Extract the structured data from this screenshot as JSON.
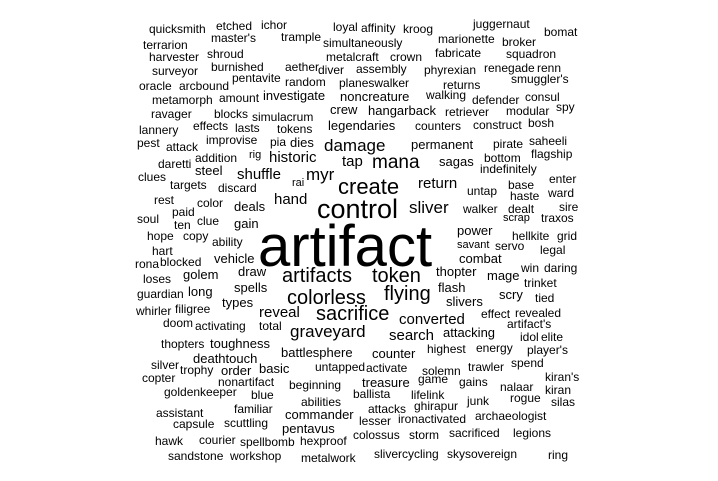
{
  "word_cloud": {
    "color": "#000000",
    "words": [
      "artifact",
      "control",
      "create",
      "colorless",
      "sacrifice",
      "artifacts",
      "token",
      "flying",
      "mana",
      "damage",
      "myr",
      "graveyard",
      "sliver",
      "converted",
      "reveal",
      "return",
      "search",
      "shuffle",
      "hand",
      "historic",
      "tap",
      "dies",
      "legendaries",
      "counter",
      "combat",
      "thopter",
      "slivers",
      "flash",
      "power",
      "draw",
      "spells",
      "gain",
      "deals",
      "hangarback",
      "permanent",
      "sagas",
      "untap",
      "walker",
      "dealt",
      "haste",
      "scrap",
      "servo",
      "savant",
      "battlesphere",
      "highest",
      "energy",
      "untapped",
      "activate",
      "solemn",
      "treasure",
      "game",
      "gains",
      "trawler",
      "beginning",
      "ballista",
      "lifelink",
      "attacks",
      "ghirapur",
      "junk",
      "rogue",
      "abilities",
      "commander",
      "lesser",
      "ironactivated",
      "archaeologist",
      "pentavus",
      "colossus",
      "storm",
      "sacrificed",
      "legions",
      "hexproof",
      "spellbomb",
      "courier",
      "hawk",
      "sandstone",
      "workshop",
      "metalwork",
      "slivercycling",
      "skysovereign",
      "ring",
      "capsule",
      "scuttling",
      "familiar",
      "assistant",
      "silas",
      "kiran",
      "kiran's",
      "nalaar",
      "spend",
      "player's",
      "idol",
      "elite",
      "artifact's",
      "revealed",
      "attacking",
      "tied",
      "trinket",
      "effect",
      "types",
      "total",
      "toughness",
      "deathtouch",
      "activating",
      "doom",
      "filigree",
      "whirler",
      "thopters",
      "silver",
      "copter",
      "trophy",
      "order",
      "basic",
      "nonartifact",
      "blue",
      "goldenkeeper",
      "long",
      "golem",
      "guardian",
      "loses",
      "rona",
      "blocked",
      "vehicle",
      "ability",
      "copy",
      "hope",
      "clue",
      "ten",
      "paid",
      "soul",
      "rest",
      "hart",
      "steel",
      "targets",
      "color",
      "discard",
      "addition",
      "rig",
      "daretti",
      "clues",
      "attack",
      "pest",
      "improvise",
      "effects",
      "lasts",
      "tokens",
      "pia",
      "rai",
      "lannery",
      "ravager",
      "blocks",
      "simulacrum",
      "crew",
      "retriever",
      "counters",
      "construct",
      "bosh",
      "modular",
      "consul",
      "spy",
      "defender",
      "smuggler's",
      "renn",
      "returns",
      "walking",
      "phyrexian",
      "renegade",
      "squadron",
      "fabricate",
      "broker",
      "marionette",
      "juggernaut",
      "bomat",
      "kroog",
      "affinity",
      "loyal",
      "simultaneously",
      "trample",
      "ichor",
      "etched",
      "quicksmith",
      "master's",
      "terrarion",
      "shroud",
      "harvester",
      "burnished",
      "surveyor",
      "pentavite",
      "aether",
      "metalcraft",
      "crown",
      "assembly",
      "diver",
      "planeswalker",
      "random",
      "oracle",
      "arcbound",
      "metamorph",
      "amount",
      "investigate",
      "noncreature",
      "saheeli",
      "flagship",
      "pirate",
      "bottom",
      "indefinitely",
      "enter",
      "base",
      "ward",
      "sire",
      "traxos",
      "hellkite",
      "grid",
      "legal",
      "daring",
      "win",
      "mage",
      "scry"
    ]
  }
}
